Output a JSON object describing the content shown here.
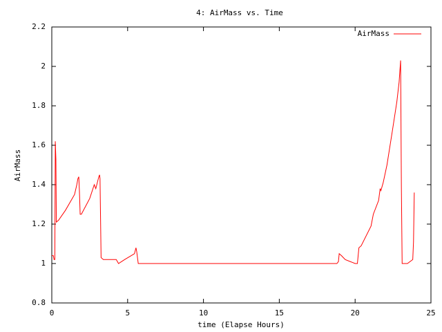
{
  "chart_data": {
    "type": "line",
    "title": "4: AirMass vs. Time",
    "x_label": "time (Elapse Hours)",
    "y_label": "AirMass",
    "x": [
      0,
      0.1,
      0.15,
      0.2,
      0.23,
      0.27,
      0.3,
      0.45,
      0.9,
      1.5,
      1.65,
      1.72,
      1.78,
      1.82,
      1.87,
      1.95,
      2.5,
      2.8,
      2.9,
      3.1,
      3.15,
      3.18,
      3.25,
      3.4,
      4.1,
      4.25,
      4.4,
      4.8,
      5.45,
      5.55,
      5.6,
      5.7,
      18.8,
      18.9,
      18.95,
      19.1,
      19.35,
      20.0,
      20.15,
      20.25,
      20.4,
      21.05,
      21.2,
      21.55,
      21.65,
      21.7,
      21.85,
      22.1,
      22.45,
      22.75,
      22.9,
      23.0,
      23.05,
      23.1,
      23.45,
      23.8,
      23.85,
      23.9
    ],
    "series": [
      {
        "name": "AirMass",
        "color": "#ff0000",
        "values": [
          1.04,
          1.04,
          1.02,
          1.02,
          1.62,
          1.53,
          1.21,
          1.22,
          1.27,
          1.35,
          1.4,
          1.43,
          1.44,
          1.37,
          1.25,
          1.25,
          1.33,
          1.4,
          1.38,
          1.44,
          1.45,
          1.43,
          1.03,
          1.02,
          1.02,
          1.02,
          1.0,
          1.02,
          1.05,
          1.08,
          1.06,
          1.0,
          1.0,
          1.01,
          1.05,
          1.04,
          1.02,
          1.0,
          1.0,
          1.08,
          1.09,
          1.19,
          1.25,
          1.32,
          1.38,
          1.37,
          1.41,
          1.5,
          1.67,
          1.82,
          1.92,
          2.03,
          1.39,
          1.0,
          1.0,
          1.02,
          1.11,
          1.36
        ]
      }
    ],
    "xlim": [
      0,
      25
    ],
    "xticks": [
      0,
      5,
      10,
      15,
      20,
      25
    ],
    "ylim": [
      0.8,
      2.2
    ],
    "yticks": [
      0.8,
      1,
      1.2,
      1.4,
      1.6,
      1.8,
      2,
      2.2
    ],
    "legend": "top-right"
  }
}
